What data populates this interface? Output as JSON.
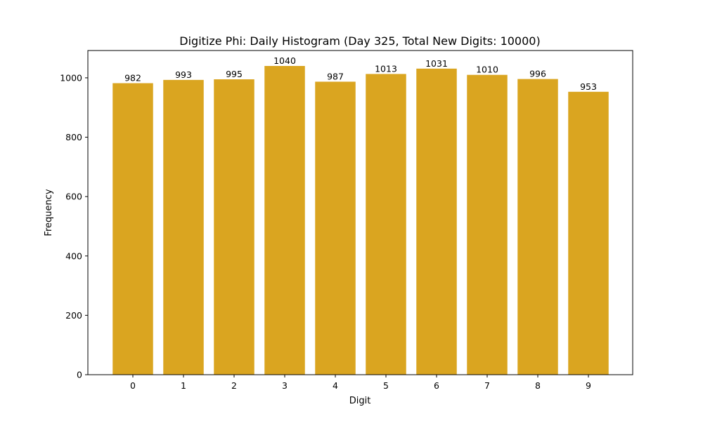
{
  "chart_data": {
    "type": "bar",
    "title": "Digitize Phi: Daily Histogram (Day 325, Total New Digits: 10000)",
    "xlabel": "Digit",
    "ylabel": "Frequency",
    "categories": [
      "0",
      "1",
      "2",
      "3",
      "4",
      "5",
      "6",
      "7",
      "8",
      "9"
    ],
    "values": [
      982,
      993,
      995,
      1040,
      987,
      1013,
      1031,
      1010,
      996,
      953
    ],
    "data_labels": [
      "982",
      "993",
      "995",
      "1040",
      "987",
      "1013",
      "1031",
      "1010",
      "996",
      "953"
    ],
    "ylim": [
      0,
      1092
    ],
    "yticks": [
      0,
      200,
      400,
      600,
      800,
      1000
    ],
    "bar_color": "#DAA520",
    "grid": false,
    "legend": "none"
  }
}
